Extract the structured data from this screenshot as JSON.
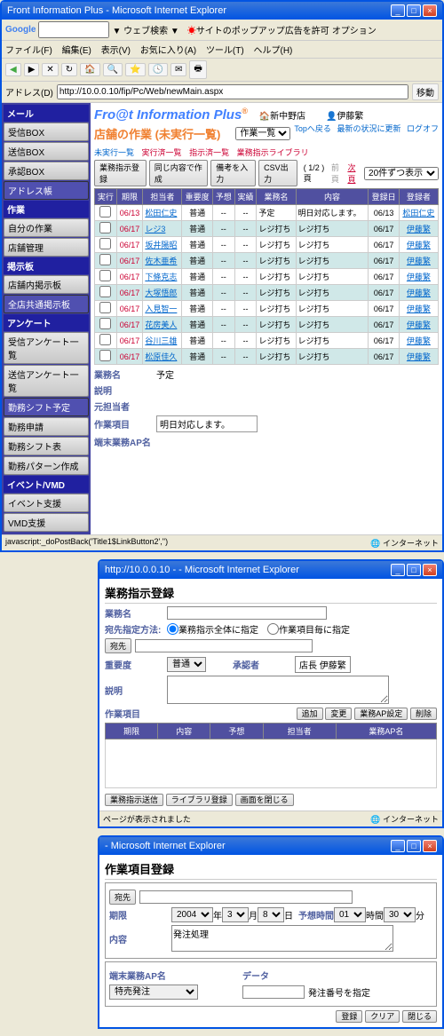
{
  "win1": {
    "title": "Front Information Plus - Microsoft Internet Explorer",
    "menubar": [
      "ファイル(F)",
      "編集(E)",
      "表示(V)",
      "お気に入り(A)",
      "ツール(T)",
      "ヘルプ(H)"
    ],
    "google": "Google",
    "websearch": "▼ ウェブ検索 ▼",
    "popup": "サイトのポップアップ広告を許可",
    "option": "オプション",
    "addr_label": "アドレス(D)",
    "addr": "http://10.0.0.10/fip/Pc/Web/newMain.aspx",
    "go": "移動"
  },
  "side": {
    "h1": "メール",
    "i1": "受信BOX",
    "i2": "送信BOX",
    "i3": "承認BOX",
    "i4": "アドレス帳",
    "h2": "作業",
    "i5": "自分の作業",
    "i6": "店舗管理",
    "h3": "掲示板",
    "i7": "店舗内掲示板",
    "i8": "全店共通掲示板",
    "h4": "アンケート",
    "i9": "受信アンケート一覧",
    "i10": "送信アンケート一覧",
    "i11": "勤務シフト予定",
    "i12": "勤務申請",
    "i13": "勤務シフト表",
    "i14": "勤務パターン作成",
    "h5": "イベント/VMD",
    "i15": "イベント支援",
    "i16": "VMD支援"
  },
  "app": {
    "title": "Fro@t Information Plus",
    "loc": "新中野店",
    "user": "伊藤繁",
    "tl1": "Topへ戻る",
    "tl2": "最新の状況に更新",
    "tl3": "ログオフ",
    "pagetitle": "店舗の作業 (未実行一覧)",
    "tab1": "未実行一覧",
    "tab2": "実行済一覧",
    "tab3": "指示済一覧",
    "tab4": "業務指示ライブラリ",
    "b1": "業務指示登録",
    "b2": "同じ内容で作成",
    "b3": "備考を入力",
    "b4": "CSV出力",
    "pager": "( 1/2 )頁",
    "prev": "前頁",
    "next": "次頁",
    "show": "20件ずつ表示",
    "filter": "作業一覧",
    "cols": [
      "実行",
      "期限",
      "担当者",
      "重要度",
      "予想",
      "実績",
      "業務名",
      "内容",
      "登録日",
      "登録者"
    ],
    "rows": [
      [
        "",
        "06/13",
        "松田仁史",
        "普通",
        "--",
        "--",
        "予定",
        "明日対応します。",
        "06/13",
        "松田仁史"
      ],
      [
        "",
        "06/17",
        "レジ3",
        "普通",
        "--",
        "--",
        "レジ打ち",
        "レジ打ち",
        "06/17",
        "伊藤繁"
      ],
      [
        "",
        "06/17",
        "坂井陽昭",
        "普通",
        "--",
        "--",
        "レジ打ち",
        "レジ打ち",
        "06/17",
        "伊藤繁"
      ],
      [
        "",
        "06/17",
        "佐木亜希",
        "普通",
        "--",
        "--",
        "レジ打ち",
        "レジ打ち",
        "06/17",
        "伊藤繁"
      ],
      [
        "",
        "06/17",
        "下條克志",
        "普通",
        "--",
        "--",
        "レジ打ち",
        "レジ打ち",
        "06/17",
        "伊藤繁"
      ],
      [
        "",
        "06/17",
        "大塚悟郎",
        "普通",
        "--",
        "--",
        "レジ打ち",
        "レジ打ち",
        "06/17",
        "伊藤繁"
      ],
      [
        "",
        "06/17",
        "入見智一",
        "普通",
        "--",
        "--",
        "レジ打ち",
        "レジ打ち",
        "06/17",
        "伊藤繁"
      ],
      [
        "",
        "06/17",
        "花房美人",
        "普通",
        "--",
        "--",
        "レジ打ち",
        "レジ打ち",
        "06/17",
        "伊藤繁"
      ],
      [
        "",
        "06/17",
        "谷川三雄",
        "普通",
        "--",
        "--",
        "レジ打ち",
        "レジ打ち",
        "06/17",
        "伊藤繁"
      ],
      [
        "",
        "06/17",
        "松原佳久",
        "普通",
        "--",
        "--",
        "レジ打ち",
        "レジ打ち",
        "06/17",
        "伊藤繁"
      ]
    ],
    "f1l": "業務名",
    "f1v": "予定",
    "f2l": "説明",
    "f3l": "元担当者",
    "f4l": "作業項目",
    "f4v": "明日対応します。",
    "f5l": "端末業務AP名",
    "status": "javascript:_doPostBack('Title1$LinkButton2','')",
    "zone": "インターネット"
  },
  "dlg2": {
    "title": "http://10.0.0.10 - - Microsoft Internet Explorer",
    "h": "業務指示登録",
    "f1": "業務名",
    "f2": "宛先指定方法:",
    "r1": "業務指示全体に指定",
    "r2": "作業項目毎に指定",
    "btn_to": "宛先",
    "f3": "重要度",
    "v3": "普通",
    "f4": "承認者",
    "v4": "店長 伊藤繁",
    "f5": "説明",
    "f6": "作業項目",
    "b1": "追加",
    "b2": "変更",
    "b3": "業務AP設定",
    "b4": "削除",
    "cols": [
      "期限",
      "内容",
      "予想",
      "担当者",
      "業務AP名"
    ],
    "b5": "業務指示送信",
    "b6": "ライブラリ登録",
    "b7": "画面を閉じる",
    "status": "ページが表示されました",
    "zone": "インターネット"
  },
  "dlg3": {
    "title": " - Microsoft Internet Explorer",
    "h": "作業項目登録",
    "btn_to": "宛先",
    "f1": "期限",
    "y": "2004",
    "yl": "年",
    "m": "3",
    "ml": "月",
    "d": "8",
    "dl": "日",
    "timelbl": "予想時間",
    "hh": "01",
    "hl": "時間",
    "mm": "30",
    "mnl": "分",
    "f2": "内容",
    "v2": "発注処理",
    "f3": "端末業務AP名",
    "v3": "特売発注",
    "f4": "データ",
    "v4": "発注番号を指定",
    "b1": "登録",
    "b2": "クリア",
    "b3": "閉じる"
  }
}
